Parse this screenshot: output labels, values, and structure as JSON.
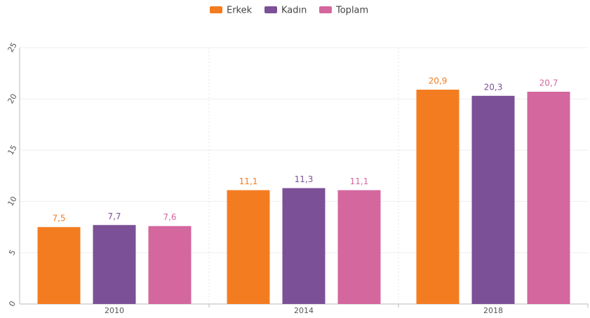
{
  "chart_data": {
    "type": "bar",
    "categories": [
      "2010",
      "2014",
      "2018"
    ],
    "series": [
      {
        "name": "Erkek",
        "color": "#f47c20",
        "values": [
          7.5,
          11.1,
          20.9
        ],
        "value_labels": [
          "7,5",
          "11,1",
          "20,9"
        ]
      },
      {
        "name": "Kadın",
        "color": "#7b5096",
        "values": [
          7.7,
          11.3,
          20.3
        ],
        "value_labels": [
          "7,7",
          "11,3",
          "20,3"
        ]
      },
      {
        "name": "Toplam",
        "color": "#d4679e",
        "values": [
          7.6,
          11.1,
          20.7
        ],
        "value_labels": [
          "7,6",
          "11,1",
          "20,7"
        ]
      }
    ],
    "ylim": [
      0,
      25
    ],
    "yticks": [
      0,
      5,
      10,
      15,
      20,
      25
    ],
    "grid": true,
    "legend": "top"
  }
}
